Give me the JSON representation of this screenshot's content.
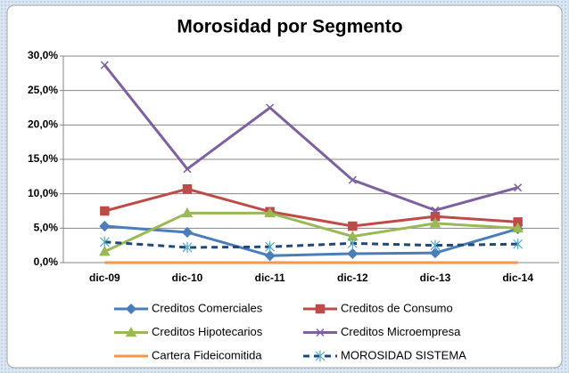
{
  "chart_data": {
    "type": "line",
    "title": "Morosidad por Segmento",
    "categories": [
      "dic-09",
      "dic-10",
      "dic-11",
      "dic-12",
      "dic-13",
      "dic-14"
    ],
    "series": [
      {
        "name": "Creditos Comerciales",
        "color": "#4a7ebb",
        "marker": "diamond",
        "values": [
          5.3,
          4.4,
          1.0,
          1.3,
          1.4,
          4.9
        ]
      },
      {
        "name": "Creditos de Consumo",
        "color": "#be4b48",
        "marker": "square",
        "values": [
          7.5,
          10.7,
          7.4,
          5.3,
          6.7,
          5.9
        ]
      },
      {
        "name": "Creditos Hipotecarios",
        "color": "#98b954",
        "marker": "triangle",
        "values": [
          1.6,
          7.2,
          7.2,
          3.8,
          5.7,
          5.0
        ]
      },
      {
        "name": "Creditos Microempresa",
        "color": "#7d60a0",
        "marker": "x",
        "values": [
          28.7,
          13.6,
          22.5,
          12.0,
          7.6,
          10.9
        ]
      },
      {
        "name": "Cartera Fideicomitida",
        "color": "#f79646",
        "marker": "none",
        "values": [
          0,
          0,
          0,
          0,
          0,
          0
        ]
      },
      {
        "name": "MOROSIDAD SISTEMA",
        "color": "#1f497d",
        "marker": "star",
        "dash": true,
        "values": [
          3.0,
          2.2,
          2.3,
          2.8,
          2.5,
          2.7
        ]
      }
    ],
    "ylim": [
      0,
      30
    ],
    "yticks": [
      {
        "value": 0,
        "label": "0,0%"
      },
      {
        "value": 5,
        "label": "5,0%"
      },
      {
        "value": 10,
        "label": "10,0%"
      },
      {
        "value": 15,
        "label": "15,0%"
      },
      {
        "value": 20,
        "label": "20,0%"
      },
      {
        "value": 25,
        "label": "25,0%"
      },
      {
        "value": 30,
        "label": "30,0%"
      }
    ],
    "grid": true
  }
}
